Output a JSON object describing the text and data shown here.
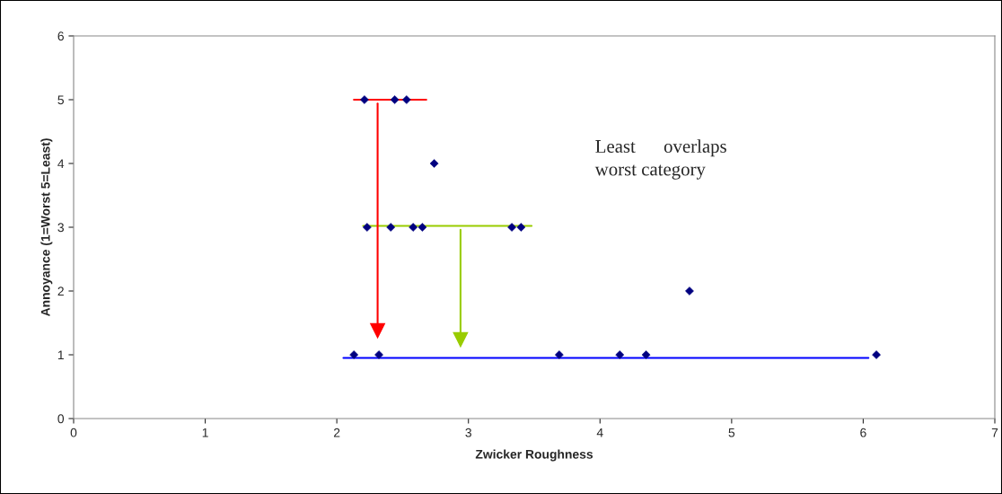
{
  "chart_data": {
    "type": "scatter",
    "xlabel": "Zwicker Roughness",
    "ylabel": "Annoyance (1=Worst 5=Least)",
    "xlim": [
      0,
      7
    ],
    "xticks": [
      0,
      1,
      2,
      3,
      4,
      5,
      6,
      7
    ],
    "ylim": [
      0,
      6
    ],
    "yticks": [
      0,
      1,
      2,
      3,
      4,
      5,
      6
    ],
    "grid": false,
    "legend": false,
    "marker": "diamond",
    "series": [
      {
        "color": "#000080",
        "x": [
          2.13,
          2.32,
          3.69,
          4.15,
          4.35,
          6.1,
          4.68,
          2.23,
          2.41,
          2.58,
          2.65,
          3.33,
          3.4,
          2.74,
          2.21,
          2.44,
          2.53
        ],
        "values": [
          1,
          1,
          1,
          1,
          1,
          1,
          2,
          3,
          3,
          3,
          3,
          3,
          3,
          4,
          5,
          5,
          5
        ]
      },
      {
        "type": "line",
        "color": "#ff0000",
        "x": [
          2.13,
          2.68
        ],
        "values": [
          5,
          5
        ],
        "marker": "none"
      },
      {
        "type": "line",
        "color": "#99cc00",
        "x": [
          2.2,
          3.48
        ],
        "values": [
          3.02,
          3.02
        ],
        "marker": "none"
      },
      {
        "type": "line",
        "color": "#0000ff",
        "x": [
          2.05,
          6.04
        ],
        "values": [
          0.95,
          0.95
        ],
        "marker": "none"
      },
      {
        "type": "line",
        "color": "#ff0000",
        "x": [
          2.31,
          2.31
        ],
        "values": [
          4.94,
          1.38
        ],
        "marker": "triangle"
      },
      {
        "type": "line",
        "color": "#99cc00",
        "x": [
          2.94,
          2.94
        ],
        "values": [
          2.96,
          1.24
        ],
        "marker": "triangle"
      }
    ],
    "annotations": [
      "Least      overlaps",
      "worst category"
    ]
  }
}
